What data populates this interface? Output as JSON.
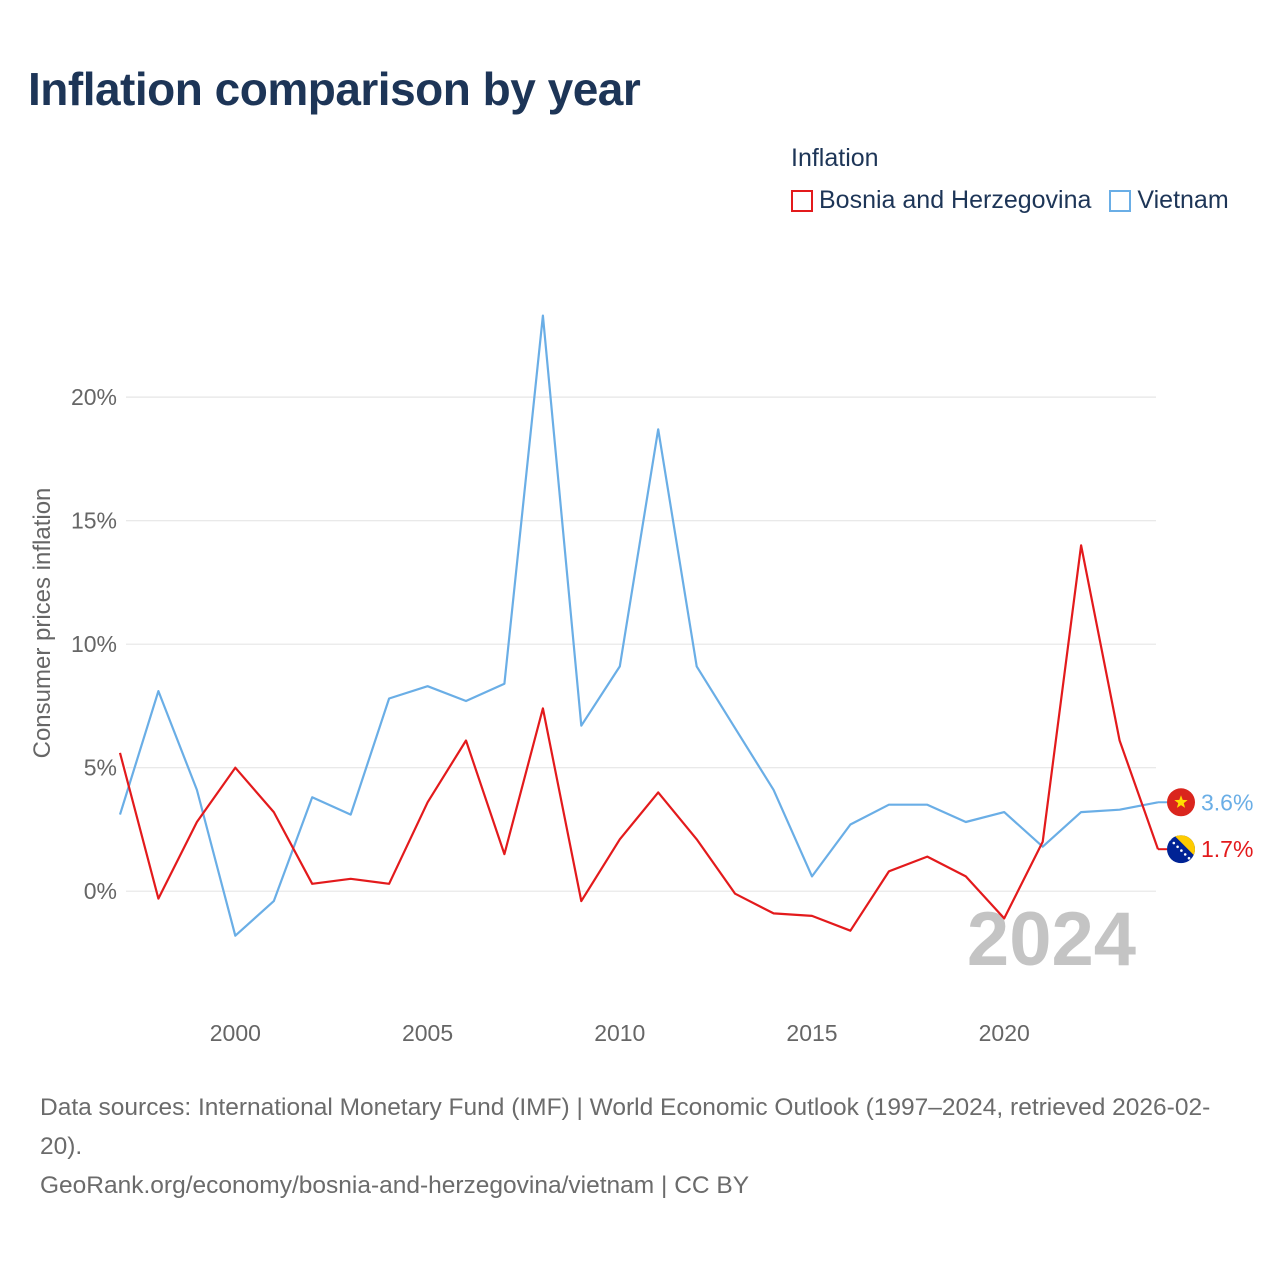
{
  "title": "Inflation comparison by year",
  "legend": {
    "title": "Inflation",
    "items": [
      {
        "label": "Bosnia and Herzegovina",
        "color": "#e31a1c"
      },
      {
        "label": "Vietnam",
        "color": "#6aaee6"
      }
    ]
  },
  "footer": {
    "line1": "Data sources: International Monetary Fund (IMF) | World Economic Outlook (1997–2024, retrieved 2026-02-20).",
    "line2": "GeoRank.org/economy/bosnia-and-herzegovina/vietnam | CC BY"
  },
  "chart_data": {
    "type": "line",
    "title": "Inflation comparison by year",
    "xlabel": "",
    "ylabel": "Consumer prices inflation",
    "xlim": [
      1997,
      2024
    ],
    "ylim": [
      -4,
      24.5
    ],
    "x_ticks": [
      2000,
      2005,
      2010,
      2015,
      2020
    ],
    "x_tick_labels": [
      "2000",
      "2005",
      "2010",
      "2015",
      "2020"
    ],
    "y_ticks": [
      0,
      5,
      10,
      15,
      20
    ],
    "y_tick_labels": [
      "0%",
      "5%",
      "10%",
      "15%",
      "20%"
    ],
    "grid": true,
    "watermark_year": "2024",
    "x": [
      1997,
      1998,
      1999,
      2000,
      2001,
      2002,
      2003,
      2004,
      2005,
      2006,
      2007,
      2008,
      2009,
      2010,
      2011,
      2012,
      2013,
      2014,
      2015,
      2016,
      2017,
      2018,
      2019,
      2020,
      2021,
      2022,
      2023,
      2024
    ],
    "series": [
      {
        "name": "Bosnia and Herzegovina",
        "color": "#e31a1c",
        "end_label": "1.7%",
        "values": [
          5.6,
          -0.3,
          2.8,
          5.0,
          3.2,
          0.3,
          0.5,
          0.3,
          3.6,
          6.1,
          1.5,
          7.4,
          -0.4,
          2.1,
          4.0,
          2.1,
          -0.1,
          -0.9,
          -1.0,
          -1.6,
          0.8,
          1.4,
          0.6,
          -1.1,
          2.0,
          14.0,
          6.1,
          1.7
        ]
      },
      {
        "name": "Vietnam",
        "color": "#6aaee6",
        "end_label": "3.6%",
        "values": [
          3.1,
          8.1,
          4.1,
          -1.8,
          -0.4,
          3.8,
          3.1,
          7.8,
          8.3,
          7.7,
          8.4,
          23.3,
          6.7,
          9.1,
          18.7,
          9.1,
          6.6,
          4.1,
          0.6,
          2.7,
          3.5,
          3.5,
          2.8,
          3.2,
          1.8,
          3.2,
          3.3,
          3.6
        ]
      }
    ]
  }
}
